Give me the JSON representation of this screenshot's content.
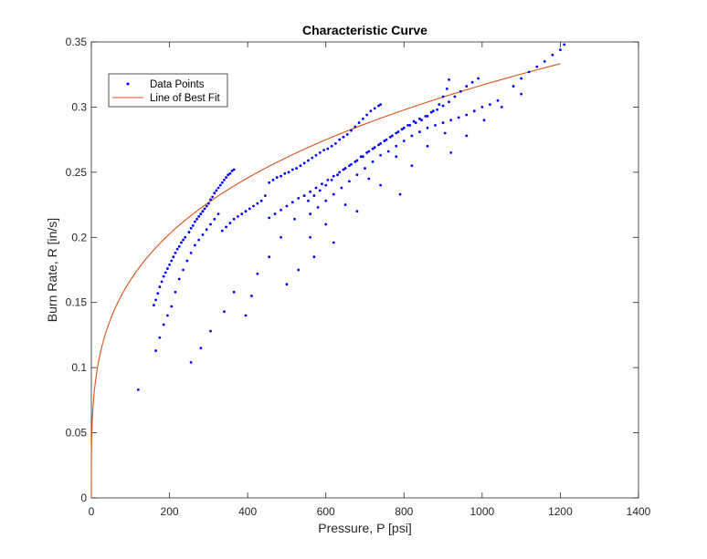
{
  "chart_data": {
    "type": "scatter",
    "title": "Characteristic Curve",
    "xlabel": "Pressure, P [psi]",
    "ylabel": "Burn Rate, R [in/s]",
    "xlim": [
      0,
      1400
    ],
    "ylim": [
      0,
      0.35
    ],
    "xticks": [
      "0",
      "200",
      "400",
      "600",
      "800",
      "1000",
      "1200",
      "1400"
    ],
    "yticks": [
      "0",
      "0.05",
      "0.1",
      "0.15",
      "0.2",
      "0.25",
      "0.3",
      "0.35"
    ],
    "grid": false,
    "legend": "top-left",
    "colors": {
      "points": "#0000ff",
      "fit": "#d95319",
      "axes": "#262626"
    },
    "series": [
      {
        "name": "Data Points",
        "kind": "scatter",
        "points": [
          [
            120,
            0.083
          ],
          [
            160,
            0.148
          ],
          [
            165,
            0.152
          ],
          [
            170,
            0.157
          ],
          [
            175,
            0.162
          ],
          [
            180,
            0.166
          ],
          [
            185,
            0.17
          ],
          [
            190,
            0.173
          ],
          [
            195,
            0.176
          ],
          [
            200,
            0.179
          ],
          [
            205,
            0.182
          ],
          [
            210,
            0.185
          ],
          [
            215,
            0.188
          ],
          [
            220,
            0.191
          ],
          [
            225,
            0.193
          ],
          [
            230,
            0.196
          ],
          [
            235,
            0.198
          ],
          [
            240,
            0.2
          ],
          [
            250,
            0.204
          ],
          [
            255,
            0.207
          ],
          [
            260,
            0.209
          ],
          [
            265,
            0.212
          ],
          [
            270,
            0.214
          ],
          [
            275,
            0.216
          ],
          [
            280,
            0.218
          ],
          [
            285,
            0.22
          ],
          [
            290,
            0.222
          ],
          [
            295,
            0.224
          ],
          [
            300,
            0.226
          ],
          [
            305,
            0.229
          ],
          [
            310,
            0.231
          ],
          [
            315,
            0.234
          ],
          [
            320,
            0.236
          ],
          [
            325,
            0.238
          ],
          [
            330,
            0.24
          ],
          [
            335,
            0.242
          ],
          [
            340,
            0.244
          ],
          [
            345,
            0.246
          ],
          [
            350,
            0.248
          ],
          [
            355,
            0.249
          ],
          [
            360,
            0.251
          ],
          [
            365,
            0.252
          ],
          [
            165,
            0.113
          ],
          [
            175,
            0.123
          ],
          [
            185,
            0.133
          ],
          [
            195,
            0.14
          ],
          [
            205,
            0.147
          ],
          [
            215,
            0.158
          ],
          [
            225,
            0.168
          ],
          [
            235,
            0.175
          ],
          [
            245,
            0.182
          ],
          [
            255,
            0.188
          ],
          [
            265,
            0.194
          ],
          [
            275,
            0.198
          ],
          [
            285,
            0.202
          ],
          [
            295,
            0.206
          ],
          [
            305,
            0.21
          ],
          [
            315,
            0.214
          ],
          [
            325,
            0.218
          ],
          [
            255,
            0.104
          ],
          [
            280,
            0.115
          ],
          [
            305,
            0.128
          ],
          [
            340,
            0.143
          ],
          [
            365,
            0.158
          ],
          [
            395,
            0.14
          ],
          [
            410,
            0.155
          ],
          [
            425,
            0.172
          ],
          [
            335,
            0.205
          ],
          [
            345,
            0.208
          ],
          [
            355,
            0.211
          ],
          [
            365,
            0.214
          ],
          [
            375,
            0.216
          ],
          [
            385,
            0.218
          ],
          [
            395,
            0.22
          ],
          [
            405,
            0.222
          ],
          [
            415,
            0.224
          ],
          [
            425,
            0.226
          ],
          [
            435,
            0.228
          ],
          [
            445,
            0.232
          ],
          [
            455,
            0.242
          ],
          [
            465,
            0.244
          ],
          [
            475,
            0.246
          ],
          [
            485,
            0.247
          ],
          [
            495,
            0.249
          ],
          [
            505,
            0.25
          ],
          [
            515,
            0.252
          ],
          [
            525,
            0.253
          ],
          [
            535,
            0.255
          ],
          [
            545,
            0.257
          ],
          [
            555,
            0.259
          ],
          [
            565,
            0.261
          ],
          [
            575,
            0.263
          ],
          [
            585,
            0.265
          ],
          [
            595,
            0.267
          ],
          [
            605,
            0.268
          ],
          [
            615,
            0.27
          ],
          [
            625,
            0.272
          ],
          [
            635,
            0.275
          ],
          [
            645,
            0.277
          ],
          [
            655,
            0.279
          ],
          [
            665,
            0.282
          ],
          [
            675,
            0.285
          ],
          [
            685,
            0.288
          ],
          [
            695,
            0.291
          ],
          [
            705,
            0.294
          ],
          [
            715,
            0.297
          ],
          [
            725,
            0.299
          ],
          [
            735,
            0.301
          ],
          [
            740,
            0.302
          ],
          [
            455,
            0.215
          ],
          [
            470,
            0.218
          ],
          [
            485,
            0.221
          ],
          [
            500,
            0.224
          ],
          [
            515,
            0.227
          ],
          [
            530,
            0.23
          ],
          [
            545,
            0.232
          ],
          [
            560,
            0.235
          ],
          [
            575,
            0.238
          ],
          [
            590,
            0.241
          ],
          [
            605,
            0.244
          ],
          [
            620,
            0.247
          ],
          [
            635,
            0.25
          ],
          [
            650,
            0.253
          ],
          [
            665,
            0.256
          ],
          [
            680,
            0.259
          ],
          [
            695,
            0.262
          ],
          [
            710,
            0.266
          ],
          [
            725,
            0.269
          ],
          [
            740,
            0.272
          ],
          [
            755,
            0.275
          ],
          [
            770,
            0.278
          ],
          [
            785,
            0.281
          ],
          [
            800,
            0.284
          ],
          [
            815,
            0.286
          ],
          [
            830,
            0.288
          ],
          [
            845,
            0.29
          ],
          [
            860,
            0.293
          ],
          [
            875,
            0.297
          ],
          [
            890,
            0.302
          ],
          [
            900,
            0.308
          ],
          [
            910,
            0.314
          ],
          [
            915,
            0.321
          ],
          [
            555,
            0.228
          ],
          [
            570,
            0.232
          ],
          [
            585,
            0.236
          ],
          [
            600,
            0.24
          ],
          [
            615,
            0.244
          ],
          [
            630,
            0.248
          ],
          [
            645,
            0.252
          ],
          [
            660,
            0.255
          ],
          [
            675,
            0.258
          ],
          [
            690,
            0.262
          ],
          [
            705,
            0.265
          ],
          [
            720,
            0.268
          ],
          [
            735,
            0.271
          ],
          [
            750,
            0.274
          ],
          [
            765,
            0.277
          ],
          [
            780,
            0.28
          ],
          [
            795,
            0.283
          ],
          [
            810,
            0.286
          ],
          [
            825,
            0.289
          ],
          [
            840,
            0.291
          ],
          [
            855,
            0.293
          ],
          [
            870,
            0.296
          ],
          [
            885,
            0.298
          ],
          [
            900,
            0.301
          ],
          [
            915,
            0.304
          ],
          [
            930,
            0.308
          ],
          [
            945,
            0.312
          ],
          [
            960,
            0.316
          ],
          [
            975,
            0.319
          ],
          [
            990,
            0.322
          ],
          [
            560,
            0.218
          ],
          [
            580,
            0.223
          ],
          [
            600,
            0.228
          ],
          [
            620,
            0.233
          ],
          [
            640,
            0.238
          ],
          [
            660,
            0.243
          ],
          [
            680,
            0.248
          ],
          [
            700,
            0.253
          ],
          [
            720,
            0.258
          ],
          [
            740,
            0.263
          ],
          [
            760,
            0.266
          ],
          [
            780,
            0.27
          ],
          [
            800,
            0.274
          ],
          [
            820,
            0.278
          ],
          [
            840,
            0.281
          ],
          [
            860,
            0.284
          ],
          [
            880,
            0.286
          ],
          [
            900,
            0.288
          ],
          [
            920,
            0.29
          ],
          [
            940,
            0.292
          ],
          [
            960,
            0.294
          ],
          [
            980,
            0.297
          ],
          [
            1000,
            0.3
          ],
          [
            1020,
            0.302
          ],
          [
            1040,
            0.305
          ],
          [
            1080,
            0.316
          ],
          [
            1100,
            0.322
          ],
          [
            1120,
            0.327
          ],
          [
            1140,
            0.331
          ],
          [
            1160,
            0.335
          ],
          [
            1180,
            0.34
          ],
          [
            1200,
            0.344
          ],
          [
            1210,
            0.348
          ],
          [
            455,
            0.185
          ],
          [
            485,
            0.2
          ],
          [
            500,
            0.164
          ],
          [
            520,
            0.214
          ],
          [
            530,
            0.175
          ],
          [
            560,
            0.2
          ],
          [
            570,
            0.185
          ],
          [
            600,
            0.21
          ],
          [
            620,
            0.196
          ],
          [
            650,
            0.225
          ],
          [
            680,
            0.22
          ],
          [
            710,
            0.245
          ],
          [
            740,
            0.24
          ],
          [
            780,
            0.262
          ],
          [
            790,
            0.233
          ],
          [
            820,
            0.255
          ],
          [
            860,
            0.27
          ],
          [
            905,
            0.28
          ],
          [
            920,
            0.265
          ],
          [
            960,
            0.278
          ],
          [
            1005,
            0.29
          ],
          [
            1050,
            0.3
          ],
          [
            1100,
            0.31
          ]
        ]
      },
      {
        "name": "Line of Best Fit",
        "kind": "line",
        "model": {
          "type": "power",
          "a": 0.0465,
          "b": 0.2778
        },
        "x_range": [
          0,
          1200
        ]
      }
    ]
  }
}
